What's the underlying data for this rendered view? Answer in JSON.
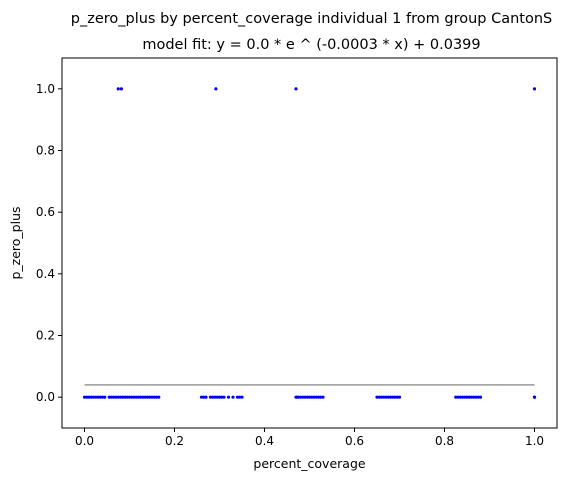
{
  "chart_data": {
    "type": "scatter",
    "title": "p_zero_plus by percent_coverage individual 1 from group CantonS",
    "subtitle": "model fit: y = 0.0 * e ^ (-0.0003 * x) + 0.0399",
    "xlabel": "percent_coverage",
    "ylabel": "p_zero_plus",
    "xlim": [
      -0.05,
      1.05
    ],
    "ylim": [
      -0.1,
      1.1
    ],
    "xticks": [
      0.0,
      0.2,
      0.4,
      0.6,
      0.8,
      1.0
    ],
    "xtick_labels": [
      "0.0",
      "0.2",
      "0.4",
      "0.6",
      "0.8",
      "1.0"
    ],
    "yticks": [
      0.0,
      0.2,
      0.4,
      0.6,
      0.8,
      1.0
    ],
    "ytick_labels": [
      "0.0",
      "0.2",
      "0.4",
      "0.6",
      "0.8",
      "1.0"
    ],
    "grid": false,
    "series": [
      {
        "marker_color": "#0000ff",
        "x": [
          0.0,
          0.005,
          0.01,
          0.015,
          0.02,
          0.025,
          0.03,
          0.035,
          0.04,
          0.045,
          0.055,
          0.06,
          0.065,
          0.07,
          0.075,
          0.08,
          0.085,
          0.09,
          0.095,
          0.1,
          0.105,
          0.11,
          0.115,
          0.12,
          0.125,
          0.13,
          0.135,
          0.14,
          0.145,
          0.15,
          0.155,
          0.16,
          0.165,
          0.26,
          0.265,
          0.27,
          0.28,
          0.285,
          0.29,
          0.295,
          0.3,
          0.305,
          0.31,
          0.32,
          0.33,
          0.34,
          0.345,
          0.35,
          0.47,
          0.472,
          0.475,
          0.48,
          0.485,
          0.49,
          0.495,
          0.5,
          0.505,
          0.51,
          0.515,
          0.52,
          0.525,
          0.53,
          0.65,
          0.655,
          0.66,
          0.665,
          0.67,
          0.675,
          0.68,
          0.685,
          0.69,
          0.695,
          0.7,
          0.825,
          0.83,
          0.835,
          0.84,
          0.845,
          0.85,
          0.855,
          0.86,
          0.865,
          0.87,
          0.875,
          0.88,
          1.0,
          1.0,
          0.075,
          0.082,
          0.292,
          0.47,
          1.0
        ],
        "y": [
          0,
          0,
          0,
          0,
          0,
          0,
          0,
          0,
          0,
          0,
          0,
          0,
          0,
          0,
          0,
          0,
          0,
          0,
          0,
          0,
          0,
          0,
          0,
          0,
          0,
          0,
          0,
          0,
          0,
          0,
          0,
          0,
          0,
          0,
          0,
          0,
          0,
          0,
          0,
          0,
          0,
          0,
          0,
          0,
          0,
          0,
          0,
          0,
          0,
          0,
          0,
          0,
          0,
          0,
          0,
          0,
          0,
          0,
          0,
          0,
          0,
          0,
          0,
          0,
          0,
          0,
          0,
          0,
          0,
          0,
          0,
          0,
          0,
          0,
          0,
          0,
          0,
          0,
          0,
          0,
          0,
          0,
          0,
          0,
          0,
          0,
          0,
          1,
          1,
          1,
          1,
          1
        ]
      },
      {
        "type": "line",
        "color": "#999999",
        "x": [
          0.0,
          1.0
        ],
        "y": [
          0.0399,
          0.0399
        ]
      }
    ]
  }
}
